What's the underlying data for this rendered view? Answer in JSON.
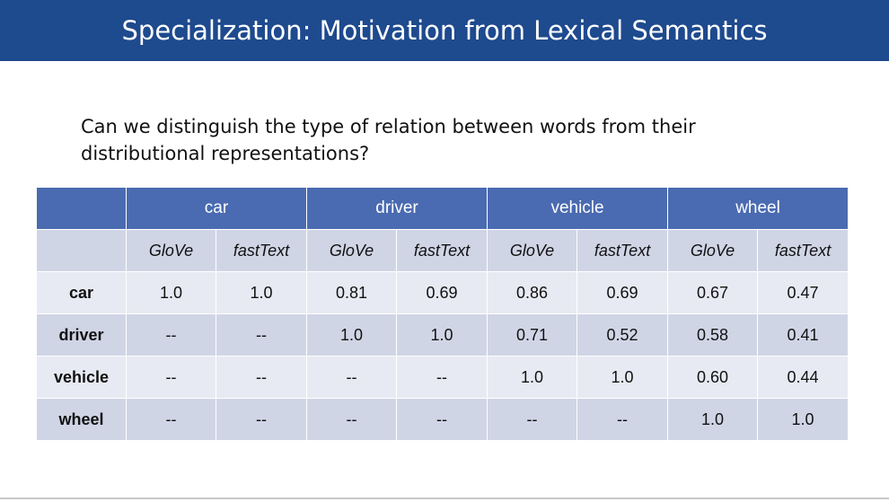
{
  "title": "Specialization: Motivation from Lexical Semantics",
  "question": "Can we distinguish the type of relation between words from their\ndistributional representations?",
  "table": {
    "header_words": [
      "car",
      "driver",
      "vehicle",
      "wheel"
    ],
    "sub_headers": [
      "GloVe",
      "fastText",
      "GloVe",
      "fastText",
      "GloVe",
      "fastText",
      "GloVe",
      "fastText"
    ],
    "rows": [
      {
        "label": "car",
        "cells": [
          "1.0",
          "1.0",
          "0.81",
          "0.69",
          "0.86",
          "0.69",
          "0.67",
          "0.47"
        ]
      },
      {
        "label": "driver",
        "cells": [
          "--",
          "--",
          "1.0",
          "1.0",
          "0.71",
          "0.52",
          "0.58",
          "0.41"
        ]
      },
      {
        "label": "vehicle",
        "cells": [
          "--",
          "--",
          "--",
          "--",
          "1.0",
          "1.0",
          "0.60",
          "0.44"
        ]
      },
      {
        "label": "wheel",
        "cells": [
          "--",
          "--",
          "--",
          "--",
          "--",
          "--",
          "1.0",
          "1.0"
        ]
      }
    ]
  },
  "colors": {
    "title_bar": "#1e4a8e",
    "header_blue": "#4a6bb1",
    "row_light": "#e8eaf3",
    "row_dark": "#d0d5e6",
    "highlight_red": "#e01d1d"
  }
}
